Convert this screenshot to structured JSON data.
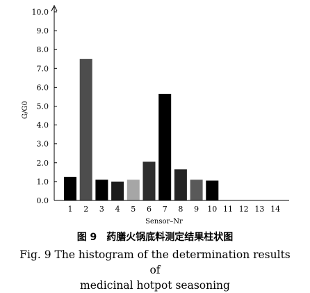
{
  "chart_data": {
    "type": "bar",
    "categories": [
      "1",
      "2",
      "3",
      "4",
      "5",
      "6",
      "7",
      "8",
      "9",
      "10",
      "11",
      "12",
      "13",
      "14"
    ],
    "values": [
      1.25,
      7.5,
      1.1,
      1.0,
      1.1,
      2.05,
      5.65,
      1.65,
      1.1,
      1.05,
      0,
      0,
      0,
      0
    ],
    "bar_colors": [
      "#000000",
      "#4d4d4d",
      "#000000",
      "#1c1c1c",
      "#a6a6a6",
      "#2e2e2e",
      "#000000",
      "#242424",
      "#595959",
      "#000000",
      "#000000",
      "#000000",
      "#000000",
      "#000000"
    ],
    "xlabel": "Sensor–Nr",
    "ylabel": "G/G0",
    "ylim": [
      0,
      10
    ],
    "yticks": [
      "0.0",
      "1.0",
      "2.0",
      "3.0",
      "4.0",
      "5.0",
      "6.0",
      "7.0",
      "8.0",
      "9.0",
      "10.0"
    ],
    "grid": false
  },
  "caption": {
    "zh": "图 9　药膳火锅底料测定结果柱状图",
    "en_line1": "Fig. 9 The histogram of the determination results of",
    "en_line2": "medicinal hotpot seasoning"
  }
}
